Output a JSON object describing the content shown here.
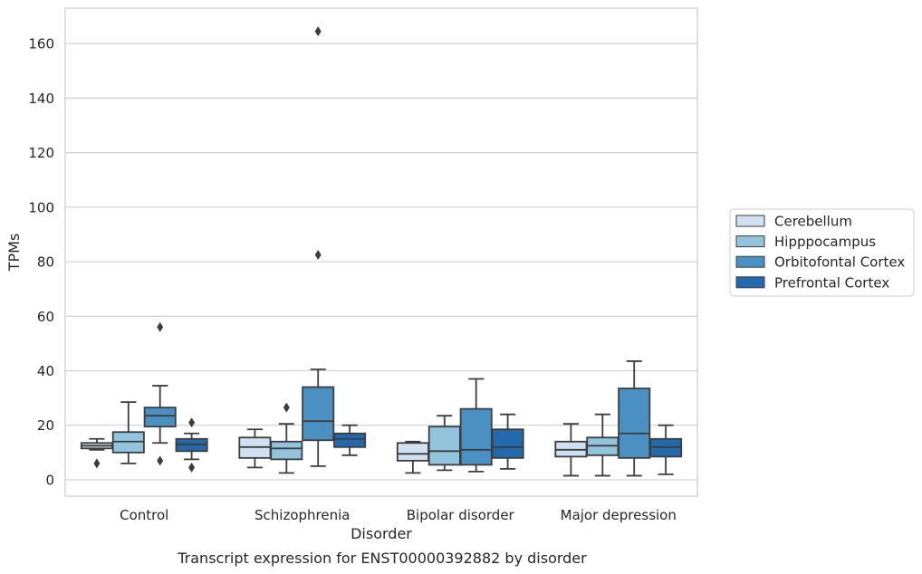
{
  "chart_data": {
    "type": "boxplot",
    "title": "Transcript expression for ENST00000392882 by disorder",
    "xlabel": "Disorder",
    "ylabel": "TPMs",
    "ylim": [
      -6,
      173
    ],
    "yticks": [
      0,
      20,
      40,
      60,
      80,
      100,
      120,
      140,
      160
    ],
    "grid": true,
    "legend_position": "right",
    "categories": [
      "Control",
      "Schizophrenia",
      "Bipolar disorder",
      "Major depression"
    ],
    "series": [
      {
        "name": "Cerebellum",
        "color": "#cfe1f2",
        "boxes": [
          {
            "whislo": 11,
            "q1": 11.5,
            "med": 12.5,
            "q3": 13.5,
            "whishi": 15,
            "fliers": [
              6
            ]
          },
          {
            "whislo": 4.5,
            "q1": 8,
            "med": 12,
            "q3": 15.5,
            "whishi": 18.5,
            "fliers": []
          },
          {
            "whislo": 2.5,
            "q1": 7,
            "med": 9.5,
            "q3": 13.5,
            "whishi": 14,
            "fliers": []
          },
          {
            "whislo": 1.5,
            "q1": 8.5,
            "med": 11,
            "q3": 14,
            "whishi": 20.5,
            "fliers": []
          }
        ]
      },
      {
        "name": "Hipppocampus",
        "color": "#93c4de",
        "boxes": [
          {
            "whislo": 6,
            "q1": 10,
            "med": 14,
            "q3": 17.5,
            "whishi": 28.5,
            "fliers": []
          },
          {
            "whislo": 2.5,
            "q1": 7.5,
            "med": 11.5,
            "q3": 14,
            "whishi": 20.5,
            "fliers": [
              26.5
            ]
          },
          {
            "whislo": 3.5,
            "q1": 5.5,
            "med": 10.5,
            "q3": 19.5,
            "whishi": 23.5,
            "fliers": []
          },
          {
            "whislo": 1.5,
            "q1": 9,
            "med": 12.5,
            "q3": 15.5,
            "whishi": 24,
            "fliers": []
          }
        ]
      },
      {
        "name": "Orbitofontal Cortex",
        "color": "#4a90c2",
        "boxes": [
          {
            "whislo": 13.5,
            "q1": 19.5,
            "med": 23.5,
            "q3": 26.5,
            "whishi": 34.5,
            "fliers": [
              7,
              56
            ]
          },
          {
            "whislo": 5,
            "q1": 14.5,
            "med": 21.5,
            "q3": 34,
            "whishi": 40.5,
            "fliers": [
              82.5,
              164.5
            ]
          },
          {
            "whislo": 3,
            "q1": 5.5,
            "med": 11,
            "q3": 26,
            "whishi": 37,
            "fliers": []
          },
          {
            "whislo": 1.5,
            "q1": 8,
            "med": 17,
            "q3": 33.5,
            "whishi": 43.5,
            "fliers": []
          }
        ]
      },
      {
        "name": "Prefrontal Cortex",
        "color": "#2369ad",
        "boxes": [
          {
            "whislo": 7.5,
            "q1": 10.5,
            "med": 13,
            "q3": 15,
            "whishi": 17,
            "fliers": [
              4.5,
              21
            ]
          },
          {
            "whislo": 9,
            "q1": 12,
            "med": 15,
            "q3": 17,
            "whishi": 20,
            "fliers": []
          },
          {
            "whislo": 4,
            "q1": 8,
            "med": 12,
            "q3": 18.5,
            "whishi": 24,
            "fliers": []
          },
          {
            "whislo": 2,
            "q1": 8.5,
            "med": 12,
            "q3": 15,
            "whishi": 20,
            "fliers": []
          }
        ]
      }
    ]
  }
}
